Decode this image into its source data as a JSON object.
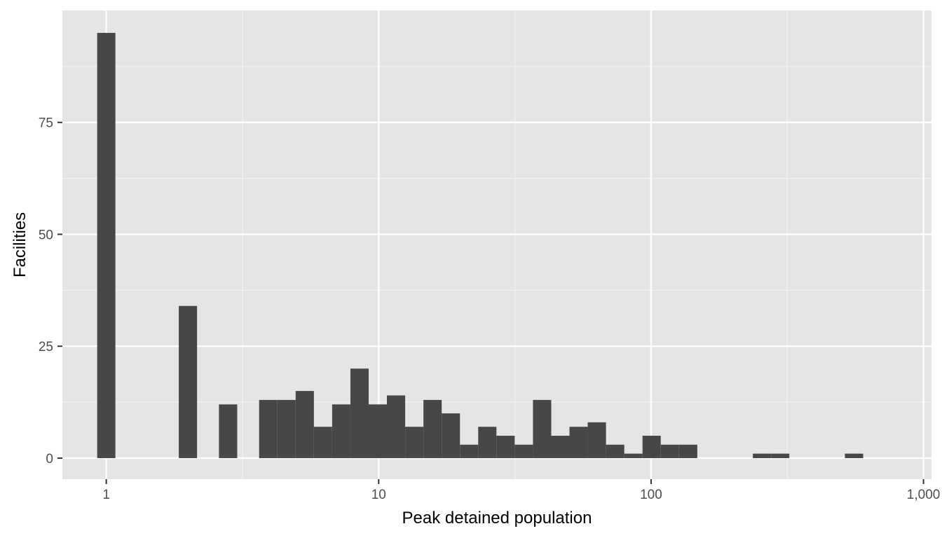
{
  "chart_data": {
    "type": "bar",
    "title": "",
    "xlabel": "Peak detained population",
    "ylabel": "Facilities",
    "x_scale": "log10",
    "xlim": [
      0.69,
      1070
    ],
    "ylim": [
      -4.7,
      100
    ],
    "x_ticks": [
      {
        "value": 1,
        "label": "1"
      },
      {
        "value": 10,
        "label": "10"
      },
      {
        "value": 100,
        "label": "100"
      },
      {
        "value": 1000,
        "label": "1,000"
      }
    ],
    "y_ticks": [
      {
        "value": 0,
        "label": "0"
      },
      {
        "value": 25,
        "label": "25"
      },
      {
        "value": 50,
        "label": "50"
      },
      {
        "value": 75,
        "label": "75"
      }
    ],
    "grid": true,
    "bins": [
      {
        "x_min": 0.926,
        "x_max": 1.08,
        "count": 95
      },
      {
        "x_min": 1.846,
        "x_max": 2.154,
        "count": 34
      },
      {
        "x_min": 2.592,
        "x_max": 3.025,
        "count": 12
      },
      {
        "x_min": 3.64,
        "x_max": 4.247,
        "count": 13
      },
      {
        "x_min": 4.247,
        "x_max": 4.956,
        "count": 13
      },
      {
        "x_min": 4.956,
        "x_max": 5.783,
        "count": 15
      },
      {
        "x_min": 5.783,
        "x_max": 6.748,
        "count": 7
      },
      {
        "x_min": 6.748,
        "x_max": 7.874,
        "count": 12
      },
      {
        "x_min": 7.874,
        "x_max": 9.187,
        "count": 20
      },
      {
        "x_min": 9.187,
        "x_max": 10.72,
        "count": 12
      },
      {
        "x_min": 10.72,
        "x_max": 12.51,
        "count": 14
      },
      {
        "x_min": 12.51,
        "x_max": 14.6,
        "count": 7
      },
      {
        "x_min": 14.6,
        "x_max": 17.03,
        "count": 13
      },
      {
        "x_min": 17.03,
        "x_max": 19.88,
        "count": 10
      },
      {
        "x_min": 19.88,
        "x_max": 23.19,
        "count": 3
      },
      {
        "x_min": 23.19,
        "x_max": 27.06,
        "count": 7
      },
      {
        "x_min": 27.06,
        "x_max": 31.58,
        "count": 5
      },
      {
        "x_min": 31.58,
        "x_max": 36.85,
        "count": 3
      },
      {
        "x_min": 36.85,
        "x_max": 43.0,
        "count": 13
      },
      {
        "x_min": 43.0,
        "x_max": 50.17,
        "count": 5
      },
      {
        "x_min": 50.17,
        "x_max": 58.54,
        "count": 7
      },
      {
        "x_min": 58.54,
        "x_max": 68.31,
        "count": 8
      },
      {
        "x_min": 68.31,
        "x_max": 79.71,
        "count": 3
      },
      {
        "x_min": 79.71,
        "x_max": 93.01,
        "count": 1
      },
      {
        "x_min": 93.01,
        "x_max": 108.5,
        "count": 5
      },
      {
        "x_min": 108.5,
        "x_max": 126.6,
        "count": 3
      },
      {
        "x_min": 126.6,
        "x_max": 147.8,
        "count": 3
      },
      {
        "x_min": 236.4,
        "x_max": 275.8,
        "count": 1
      },
      {
        "x_min": 275.8,
        "x_max": 321.8,
        "count": 1
      },
      {
        "x_min": 514.7,
        "x_max": 600.6,
        "count": 1
      }
    ],
    "colors": {
      "panel_background": "#e5e5e5",
      "grid_major": "#ffffff",
      "grid_minor": "#f2f2f2",
      "bar_fill": "#474747",
      "tick_text": "#4d4d4d",
      "tick_mark": "#333333",
      "axis_title": "#000000"
    }
  }
}
